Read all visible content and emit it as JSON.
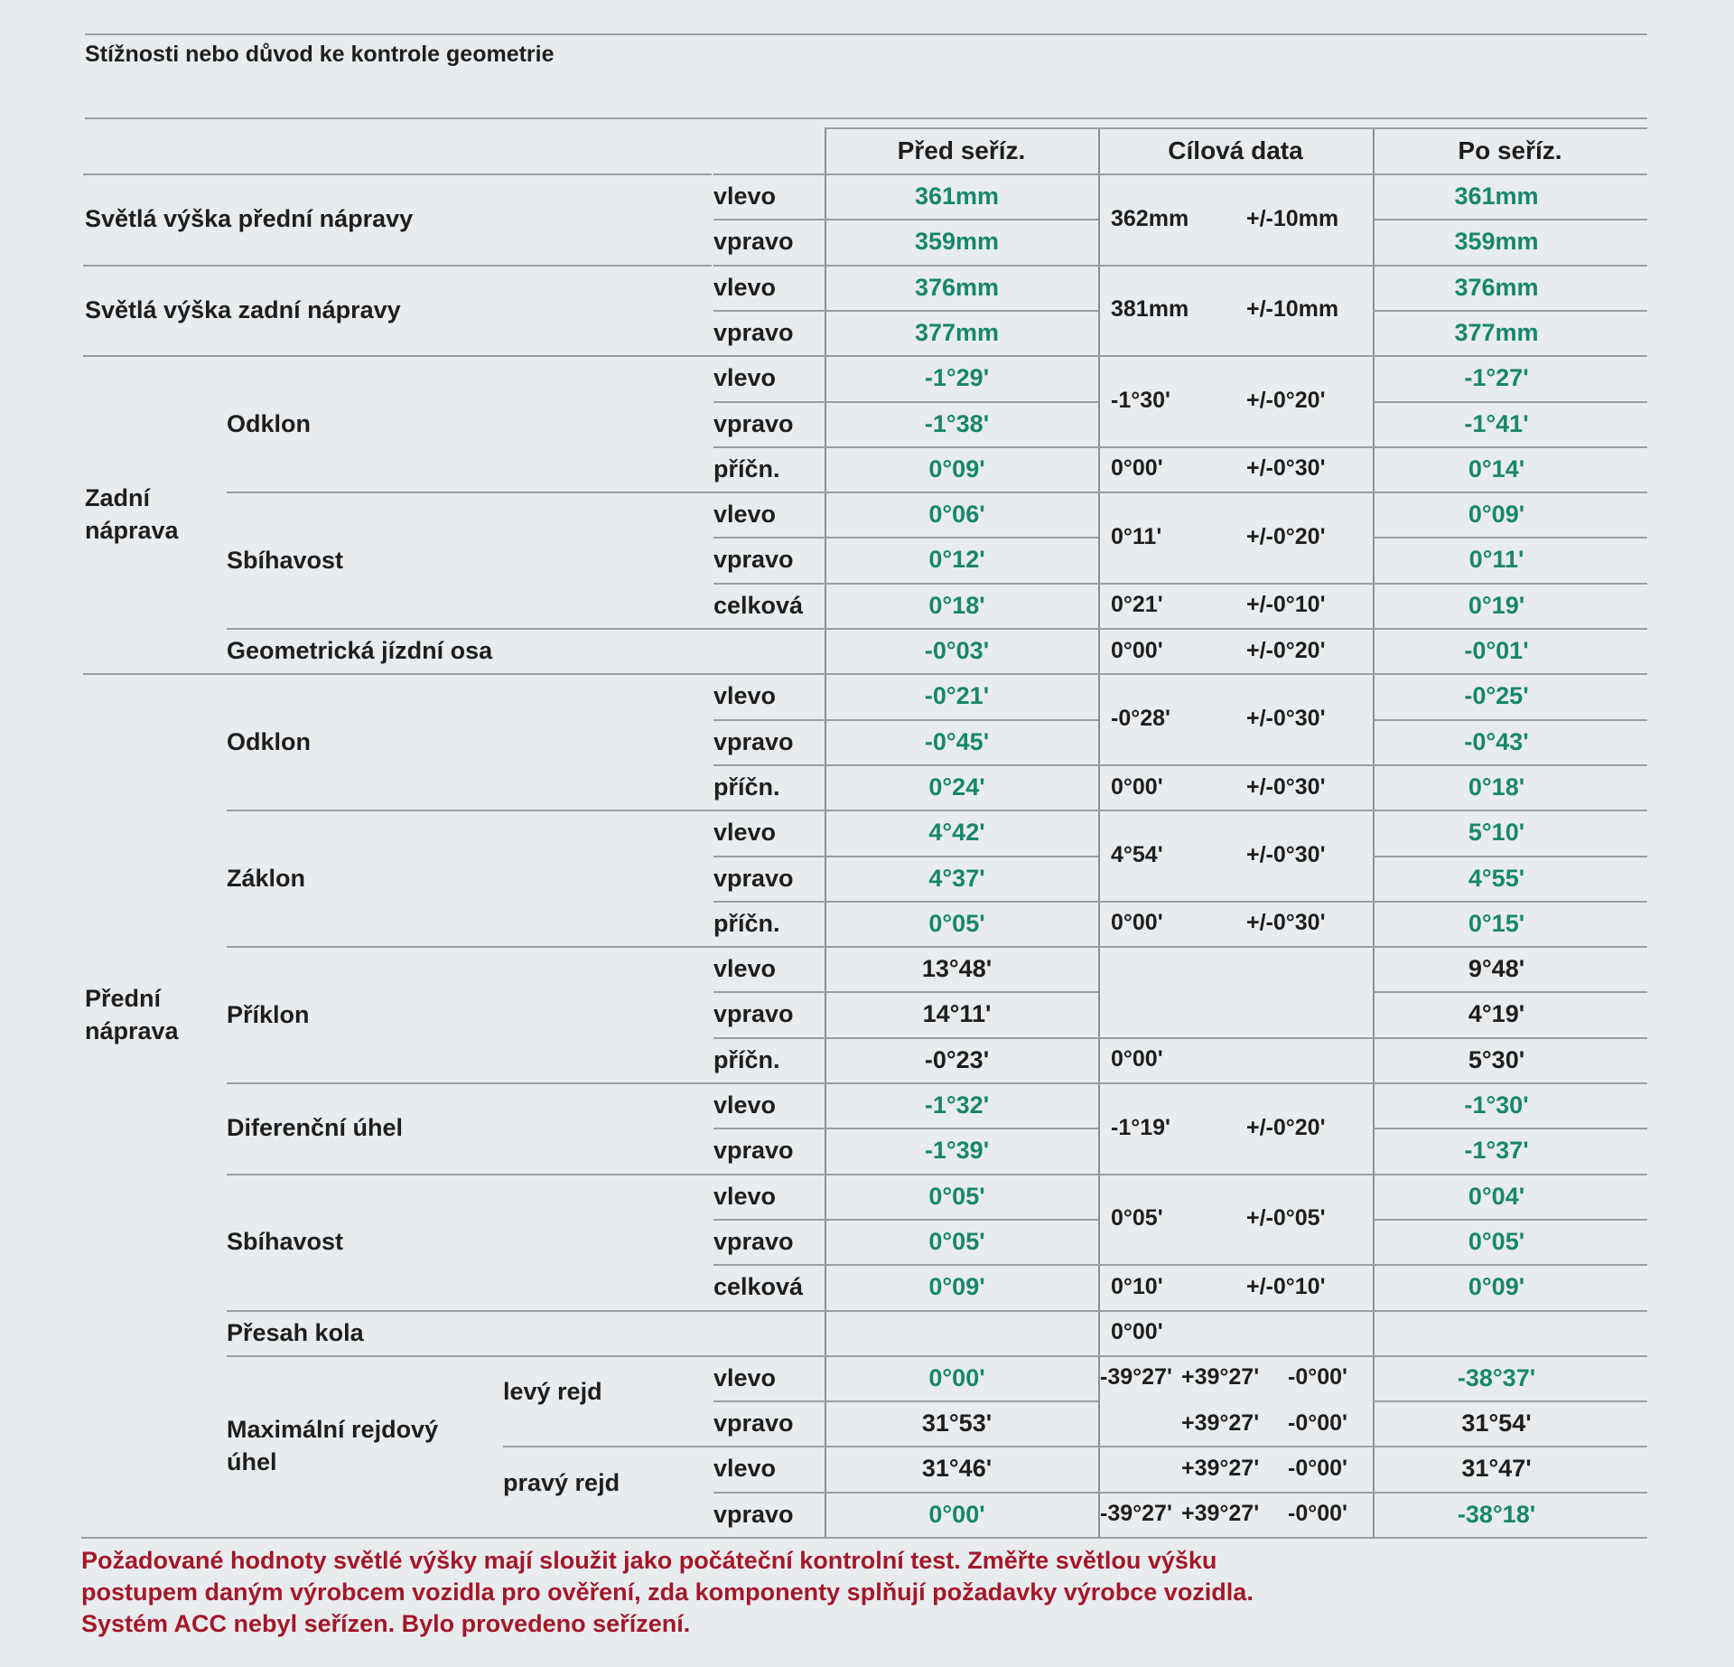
{
  "document": {
    "complaint_label": "Stížnosti nebo důvod ke kontrole geometrie",
    "columns": [
      "Před seříz.",
      "Cílová data",
      "Po seříz."
    ],
    "colors": {
      "in_tolerance": "#17876b",
      "note": "#a3172a",
      "text": "#1e1e1e"
    },
    "group_labels": [
      "Světlá výška přední nápravy",
      "Světlá výška zadní nápravy",
      "Zadní\nnáprava",
      "Přední\nnáprava"
    ],
    "sub_labels": [
      "Odklon",
      "Sbíhavost",
      "Geometrická jízdní osa",
      "Odklon",
      "Záklon",
      "Příklon",
      "Diferenční úhel",
      "Sbíhavost",
      "Přesah kola",
      "Maximální rejdový\núhel"
    ],
    "subsub_labels": [
      "levý rejd",
      "pravý rejd"
    ],
    "rows": [
      {
        "side": "vlevo",
        "before": "361mm",
        "before_ok": true,
        "after": "361mm",
        "after_ok": true
      },
      {
        "side": "vpravo",
        "before": "359mm",
        "before_ok": true,
        "after": "359mm",
        "after_ok": true
      },
      {
        "side": "vlevo",
        "before": "376mm",
        "before_ok": true,
        "after": "376mm",
        "after_ok": true
      },
      {
        "side": "vpravo",
        "before": "377mm",
        "before_ok": true,
        "after": "377mm",
        "after_ok": true
      },
      {
        "side": "vlevo",
        "before": "-1°29'",
        "before_ok": true,
        "after": "-1°27'",
        "after_ok": true
      },
      {
        "side": "vpravo",
        "before": "-1°38'",
        "before_ok": true,
        "after": "-1°41'",
        "after_ok": true
      },
      {
        "side": "příčn.",
        "before": "0°09'",
        "before_ok": true,
        "after": "0°14'",
        "after_ok": true
      },
      {
        "side": "vlevo",
        "before": "0°06'",
        "before_ok": true,
        "after": "0°09'",
        "after_ok": true
      },
      {
        "side": "vpravo",
        "before": "0°12'",
        "before_ok": true,
        "after": "0°11'",
        "after_ok": true
      },
      {
        "side": "celková",
        "before": "0°18'",
        "before_ok": true,
        "after": "0°19'",
        "after_ok": true
      },
      {
        "side": "",
        "before": "-0°03'",
        "before_ok": true,
        "after": "-0°01'",
        "after_ok": true
      },
      {
        "side": "vlevo",
        "before": "-0°21'",
        "before_ok": true,
        "after": "-0°25'",
        "after_ok": true
      },
      {
        "side": "vpravo",
        "before": "-0°45'",
        "before_ok": true,
        "after": "-0°43'",
        "after_ok": true
      },
      {
        "side": "příčn.",
        "before": "0°24'",
        "before_ok": true,
        "after": "0°18'",
        "after_ok": true
      },
      {
        "side": "vlevo",
        "before": "4°42'",
        "before_ok": true,
        "after": "5°10'",
        "after_ok": true
      },
      {
        "side": "vpravo",
        "before": "4°37'",
        "before_ok": true,
        "after": "4°55'",
        "after_ok": true
      },
      {
        "side": "příčn.",
        "before": "0°05'",
        "before_ok": true,
        "after": "0°15'",
        "after_ok": true
      },
      {
        "side": "vlevo",
        "before": "13°48'",
        "before_ok": false,
        "after": "9°48'",
        "after_ok": false
      },
      {
        "side": "vpravo",
        "before": "14°11'",
        "before_ok": false,
        "after": "4°19'",
        "after_ok": false
      },
      {
        "side": "příčn.",
        "before": "-0°23'",
        "before_ok": false,
        "after": "5°30'",
        "after_ok": false
      },
      {
        "side": "vlevo",
        "before": "-1°32'",
        "before_ok": true,
        "after": "-1°30'",
        "after_ok": true
      },
      {
        "side": "vpravo",
        "before": "-1°39'",
        "before_ok": true,
        "after": "-1°37'",
        "after_ok": true
      },
      {
        "side": "vlevo",
        "before": "0°05'",
        "before_ok": true,
        "after": "0°04'",
        "after_ok": true
      },
      {
        "side": "vpravo",
        "before": "0°05'",
        "before_ok": true,
        "after": "0°05'",
        "after_ok": true
      },
      {
        "side": "celková",
        "before": "0°09'",
        "before_ok": true,
        "after": "0°09'",
        "after_ok": true
      },
      {
        "side": "",
        "before": "",
        "before_ok": false,
        "after": "",
        "after_ok": false
      },
      {
        "side": "vlevo",
        "before": "0°00'",
        "before_ok": true,
        "after": "-38°37'",
        "after_ok": true
      },
      {
        "side": "vpravo",
        "before": "31°53'",
        "before_ok": false,
        "after": "31°54'",
        "after_ok": false
      },
      {
        "side": "vlevo",
        "before": "31°46'",
        "before_ok": false,
        "after": "31°47'",
        "after_ok": false
      },
      {
        "side": "vpravo",
        "before": "0°00'",
        "before_ok": true,
        "after": "-38°18'",
        "after_ok": true
      }
    ],
    "targets": [
      [
        "362mm",
        "+/-10mm"
      ],
      [
        "381mm",
        "+/-10mm"
      ],
      [
        "-1°30'",
        "+/-0°20'"
      ],
      [
        "0°00'",
        "+/-0°30'"
      ],
      [
        "0°11'",
        "+/-0°20'"
      ],
      [
        "0°21'",
        "+/-0°10'"
      ],
      [
        "0°00'",
        "+/-0°20'"
      ],
      [
        "-0°28'",
        "+/-0°30'"
      ],
      [
        "0°00'",
        "+/-0°30'"
      ],
      [
        "4°54'",
        "+/-0°30'"
      ],
      [
        "0°00'",
        "+/-0°30'"
      ],
      [],
      [
        "0°00'"
      ],
      [
        "-1°19'",
        "+/-0°20'"
      ],
      [
        "0°05'",
        "+/-0°05'"
      ],
      [
        "0°10'",
        "+/-0°10'"
      ],
      [
        "0°00'"
      ],
      [
        "-39°27'",
        "+39°27'",
        "-0°00'"
      ],
      [
        "",
        "+39°27'",
        "-0°00'"
      ],
      [
        "",
        "+39°27'",
        "-0°00'"
      ],
      [
        "-39°27'",
        "+39°27'",
        "-0°00'"
      ]
    ],
    "notes": [
      "Požadované hodnoty světlé výšky mají sloužit jako počáteční kontrolní test. Změřte světlou výšku",
      "postupem daným výrobcem vozidla pro ověření, zda komponenty splňují požadavky výrobce vozidla.",
      "Systém ACC nebyl seřízen.  Bylo provedeno seřízení."
    ]
  }
}
